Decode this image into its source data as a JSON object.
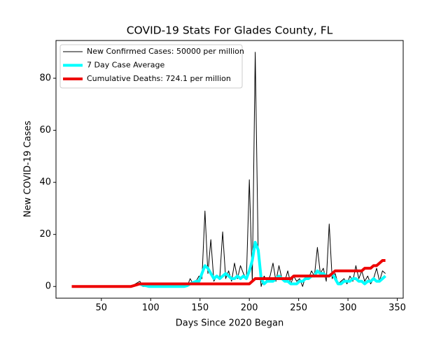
{
  "chart_data": {
    "type": "line",
    "title": "COVID-19 Stats For Glades County, FL",
    "x_label": "Days Since 2020 Began",
    "y_label": "New COVID-19 Cases",
    "x": [
      20,
      40,
      60,
      80,
      89,
      92,
      95,
      98,
      101,
      104,
      107,
      110,
      113,
      116,
      119,
      122,
      125,
      128,
      131,
      134,
      137,
      140,
      143,
      146,
      149,
      152,
      155,
      158,
      161,
      164,
      167,
      170,
      173,
      176,
      179,
      182,
      185,
      188,
      191,
      194,
      197,
      200,
      203,
      206,
      209,
      212,
      215,
      218,
      221,
      224,
      227,
      230,
      233,
      236,
      239,
      242,
      245,
      248,
      251,
      254,
      257,
      260,
      263,
      266,
      269,
      272,
      275,
      278,
      281,
      284,
      287,
      290,
      293,
      296,
      299,
      302,
      305,
      308,
      311,
      314,
      317,
      320,
      323,
      326,
      329,
      332,
      335,
      338
    ],
    "series": [
      {
        "name": "New Confirmed Cases: 50000 per million",
        "color": "#000000",
        "width": 1,
        "values": [
          0,
          0,
          0,
          0,
          2,
          0,
          0,
          0,
          0,
          0,
          0,
          0,
          0,
          0,
          0,
          0,
          0,
          0,
          0,
          0,
          0,
          3,
          1,
          2,
          4,
          3,
          29,
          5,
          18,
          2,
          4,
          3,
          21,
          3,
          6,
          2,
          9,
          3,
          8,
          5,
          3,
          41,
          2,
          90,
          12,
          0,
          4,
          2,
          4,
          9,
          2,
          8,
          3,
          2,
          6,
          1,
          4,
          2,
          3,
          0,
          4,
          3,
          6,
          4,
          15,
          5,
          7,
          2,
          24,
          3,
          5,
          1,
          2,
          3,
          1,
          4,
          2,
          8,
          3,
          6,
          2,
          4,
          1,
          3,
          7,
          2,
          6,
          5
        ]
      },
      {
        "name": "7 Day Case Average",
        "color": "#00ffff",
        "width": 4,
        "values": [
          null,
          null,
          null,
          null,
          1,
          0.5,
          0.3,
          0,
          0,
          0,
          0,
          0,
          0,
          0,
          0,
          0,
          0,
          0,
          0,
          0,
          0.3,
          1,
          1.5,
          2,
          2,
          5,
          8,
          7,
          5,
          3,
          4,
          3,
          4,
          5,
          4,
          3,
          3,
          4,
          3,
          4,
          3,
          6,
          10,
          17,
          14,
          3,
          1,
          2,
          2,
          2,
          3,
          4,
          3,
          2,
          2,
          1,
          1,
          1,
          2,
          2,
          3,
          3,
          4,
          4,
          6,
          5,
          5,
          4,
          4,
          5,
          3,
          1,
          1,
          2,
          2,
          2,
          3,
          3,
          2,
          2,
          1,
          2,
          2,
          3,
          2,
          2,
          3,
          4
        ]
      },
      {
        "name": "Cumulative Deaths: 724.1 per million",
        "color": "#ee0000",
        "width": 4,
        "values": [
          0,
          0,
          0,
          0,
          1,
          1,
          1,
          1,
          1,
          1,
          1,
          1,
          1,
          1,
          1,
          1,
          1,
          1,
          1,
          1,
          1,
          1,
          1,
          1,
          1,
          1,
          1,
          1,
          1,
          1,
          1,
          1,
          1,
          1,
          1,
          1,
          1,
          1,
          1,
          1,
          1,
          1,
          2,
          3,
          3,
          3,
          3,
          3,
          3,
          3,
          3,
          3,
          3,
          3,
          3,
          3,
          4,
          4,
          4,
          4,
          4,
          4,
          4,
          4,
          4,
          4,
          4,
          4,
          4,
          5,
          6,
          6,
          6,
          6,
          6,
          6,
          6,
          6,
          6,
          6,
          7,
          7,
          7,
          8,
          8,
          9,
          10,
          10
        ]
      }
    ],
    "xlim": [
      4,
      356
    ],
    "xticks": [
      50,
      100,
      150,
      200,
      250,
      300,
      350
    ],
    "ylim": [
      -4.5,
      94.5
    ],
    "yticks": [
      0,
      20,
      40,
      60,
      80
    ],
    "grid": false,
    "legend": "upper left"
  }
}
